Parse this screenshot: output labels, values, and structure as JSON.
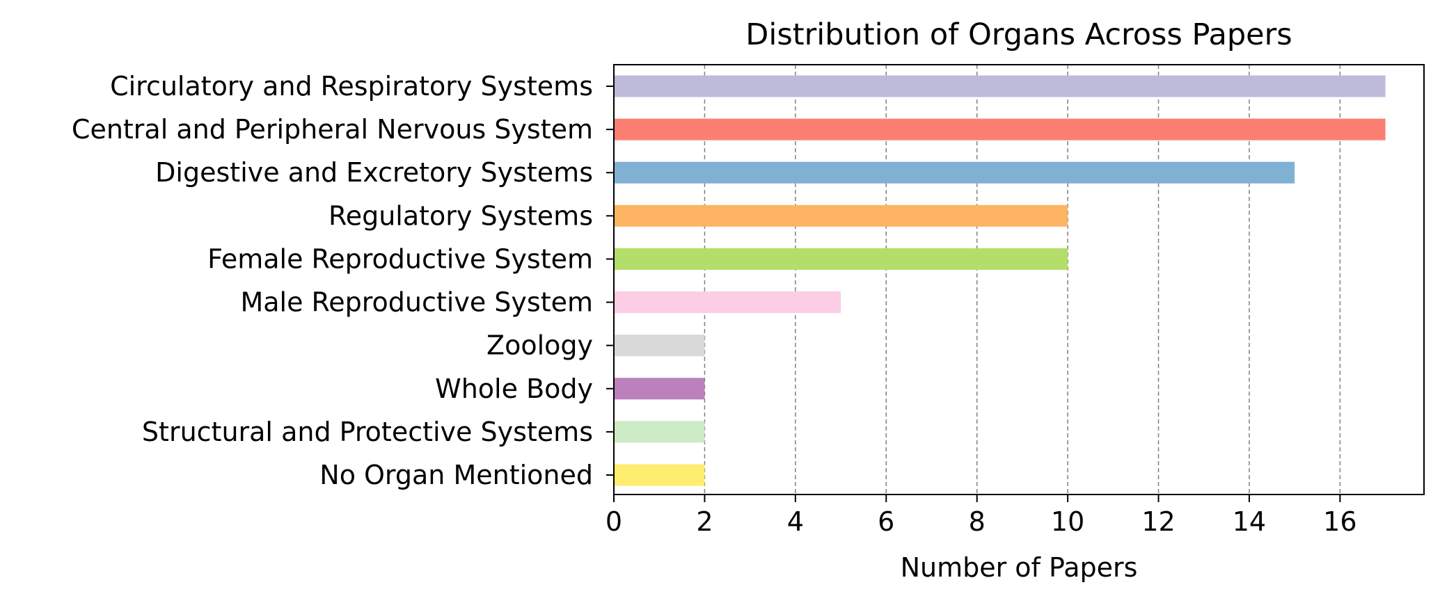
{
  "chart_data": {
    "type": "bar",
    "orientation": "horizontal",
    "title": "Distribution of Organs Across Papers",
    "xlabel": "Number of Papers",
    "ylabel": "",
    "xlim": [
      0,
      17.85
    ],
    "xticks": [
      0,
      2,
      4,
      6,
      8,
      10,
      12,
      14,
      16
    ],
    "grid": "x, dashed",
    "categories": [
      "Circulatory and Respiratory Systems",
      "Central and Peripheral Nervous System",
      "Digestive and Excretory Systems",
      "Regulatory Systems",
      "Female Reproductive System",
      "Male Reproductive System",
      "Zoology",
      "Whole Body",
      "Structural and Protective Systems",
      "No Organ Mentioned"
    ],
    "values": [
      17,
      17,
      15,
      10,
      10,
      5,
      2,
      2,
      2,
      2
    ],
    "colors": [
      "#bebada",
      "#fb8072",
      "#80b1d3",
      "#fdb462",
      "#b3de69",
      "#fccde5",
      "#d9d9d9",
      "#bc80bd",
      "#ccebc5",
      "#ffed6f"
    ]
  }
}
